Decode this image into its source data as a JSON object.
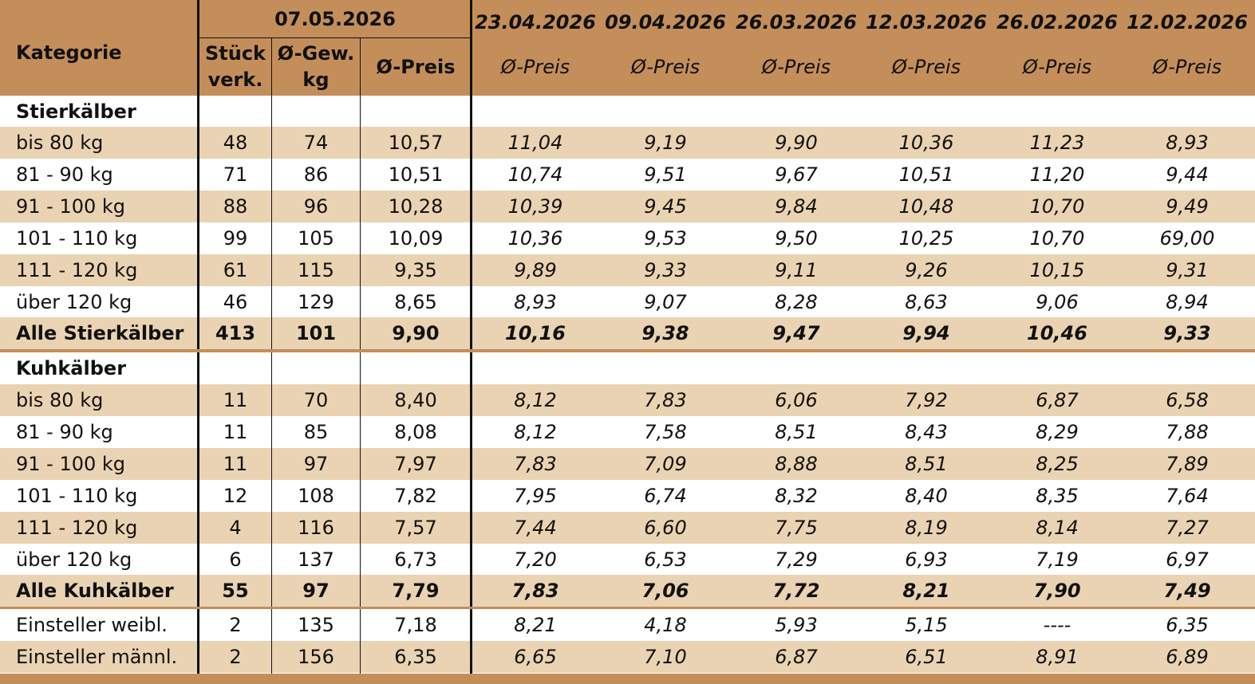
{
  "header": {
    "kategorie": "Kategorie",
    "current_date": "07.05.2026",
    "col_stueck_1": "Stück",
    "col_stueck_2": "verk.",
    "col_gew_1": "Ø-Gew.",
    "col_gew_2": "kg",
    "col_preis": "Ø-Preis",
    "history_dates": [
      "23.04.2026",
      "09.04.2026",
      "26.03.2026",
      "12.03.2026",
      "26.02.2026",
      "12.02.2026"
    ],
    "history_label": "Ø-Preis"
  },
  "sections": {
    "stier_title": "Stierkälber",
    "kuh_title": "Kuhkälber"
  },
  "rows": [
    {
      "label": "bis 80 kg",
      "stueck": "48",
      "gew": "74",
      "preis": "10,57",
      "hist": [
        "11,04",
        "9,19",
        "9,90",
        "10,36",
        "11,23",
        "8,93"
      ]
    },
    {
      "label": "81 - 90 kg",
      "stueck": "71",
      "gew": "86",
      "preis": "10,51",
      "hist": [
        "10,74",
        "9,51",
        "9,67",
        "10,51",
        "11,20",
        "9,44"
      ]
    },
    {
      "label": "91 - 100 kg",
      "stueck": "88",
      "gew": "96",
      "preis": "10,28",
      "hist": [
        "10,39",
        "9,45",
        "9,84",
        "10,48",
        "10,70",
        "9,49"
      ]
    },
    {
      "label": "101 - 110 kg",
      "stueck": "99",
      "gew": "105",
      "preis": "10,09",
      "hist": [
        "10,36",
        "9,53",
        "9,50",
        "10,25",
        "10,70",
        "69,00"
      ]
    },
    {
      "label": "111 - 120 kg",
      "stueck": "61",
      "gew": "115",
      "preis": "9,35",
      "hist": [
        "9,89",
        "9,33",
        "9,11",
        "9,26",
        "10,15",
        "9,31"
      ]
    },
    {
      "label": "über 120 kg",
      "stueck": "46",
      "gew": "129",
      "preis": "8,65",
      "hist": [
        "8,93",
        "9,07",
        "8,28",
        "8,63",
        "9,06",
        "8,94"
      ]
    },
    {
      "label": "Alle Stierkälber",
      "stueck": "413",
      "gew": "101",
      "preis": "9,90",
      "hist": [
        "10,16",
        "9,38",
        "9,47",
        "9,94",
        "10,46",
        "9,33"
      ]
    },
    {
      "label": "bis 80 kg",
      "stueck": "11",
      "gew": "70",
      "preis": "8,40",
      "hist": [
        "8,12",
        "7,83",
        "6,06",
        "7,92",
        "6,87",
        "6,58"
      ]
    },
    {
      "label": "81 - 90 kg",
      "stueck": "11",
      "gew": "85",
      "preis": "8,08",
      "hist": [
        "8,12",
        "7,58",
        "8,51",
        "8,43",
        "8,29",
        "7,88"
      ]
    },
    {
      "label": "91 - 100 kg",
      "stueck": "11",
      "gew": "97",
      "preis": "7,97",
      "hist": [
        "7,83",
        "7,09",
        "8,88",
        "8,51",
        "8,25",
        "7,89"
      ]
    },
    {
      "label": "101 - 110 kg",
      "stueck": "12",
      "gew": "108",
      "preis": "7,82",
      "hist": [
        "7,95",
        "6,74",
        "8,32",
        "8,40",
        "8,35",
        "7,64"
      ]
    },
    {
      "label": "111 - 120 kg",
      "stueck": "4",
      "gew": "116",
      "preis": "7,57",
      "hist": [
        "7,44",
        "6,60",
        "7,75",
        "8,19",
        "8,14",
        "7,27"
      ]
    },
    {
      "label": "über 120 kg",
      "stueck": "6",
      "gew": "137",
      "preis": "6,73",
      "hist": [
        "7,20",
        "6,53",
        "7,29",
        "6,93",
        "7,19",
        "6,97"
      ]
    },
    {
      "label": "Alle Kuhkälber",
      "stueck": "55",
      "gew": "97",
      "preis": "7,79",
      "hist": [
        "7,83",
        "7,06",
        "7,72",
        "8,21",
        "7,90",
        "7,49"
      ]
    },
    {
      "label": "Einsteller weibl.",
      "stueck": "2",
      "gew": "135",
      "preis": "7,18",
      "hist": [
        "8,21",
        "4,18",
        "5,93",
        "5,15",
        "----",
        "6,35"
      ]
    },
    {
      "label": "Einsteller männl.",
      "stueck": "2",
      "gew": "156",
      "preis": "6,35",
      "hist": [
        "6,65",
        "7,10",
        "6,87",
        "6,51",
        "8,91",
        "6,89"
      ]
    }
  ],
  "colors": {
    "header_bg": "#c48e5a",
    "stripe_bg": "#ead3b2",
    "separator": "#c48e5a"
  }
}
